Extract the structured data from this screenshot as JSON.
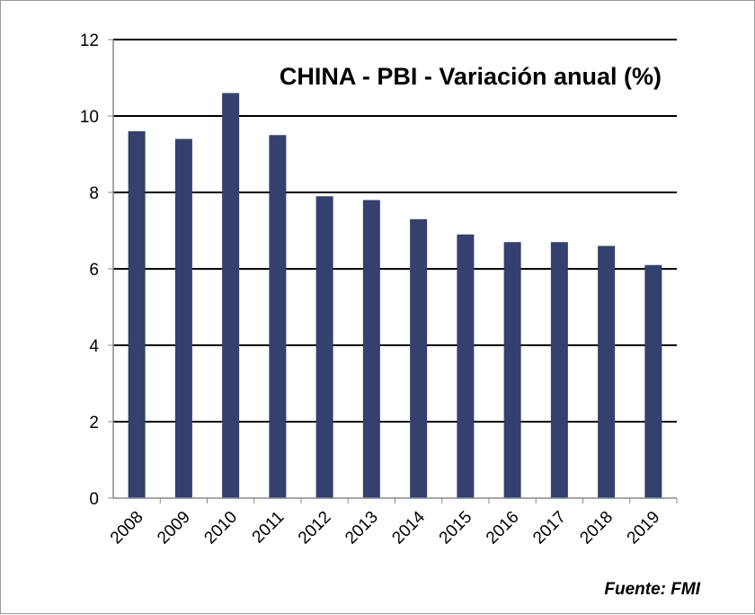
{
  "chart_data": {
    "type": "bar",
    "title": "CHINA - PBI - Variación anual (%)",
    "source": "Fuente: FMI",
    "xlabel": "",
    "ylabel": "",
    "categories": [
      "2008",
      "2009",
      "2010",
      "2011",
      "2012",
      "2013",
      "2014",
      "2015",
      "2016",
      "2017",
      "2018",
      "2019"
    ],
    "values": [
      9.6,
      9.4,
      10.6,
      9.5,
      7.9,
      7.8,
      7.3,
      6.9,
      6.7,
      6.7,
      6.6,
      6.1
    ],
    "ylim": [
      0,
      12
    ],
    "yticks": [
      "0",
      "2",
      "4",
      "6",
      "8",
      "10",
      "12"
    ],
    "grid": true,
    "bar_color": "#34406e"
  }
}
